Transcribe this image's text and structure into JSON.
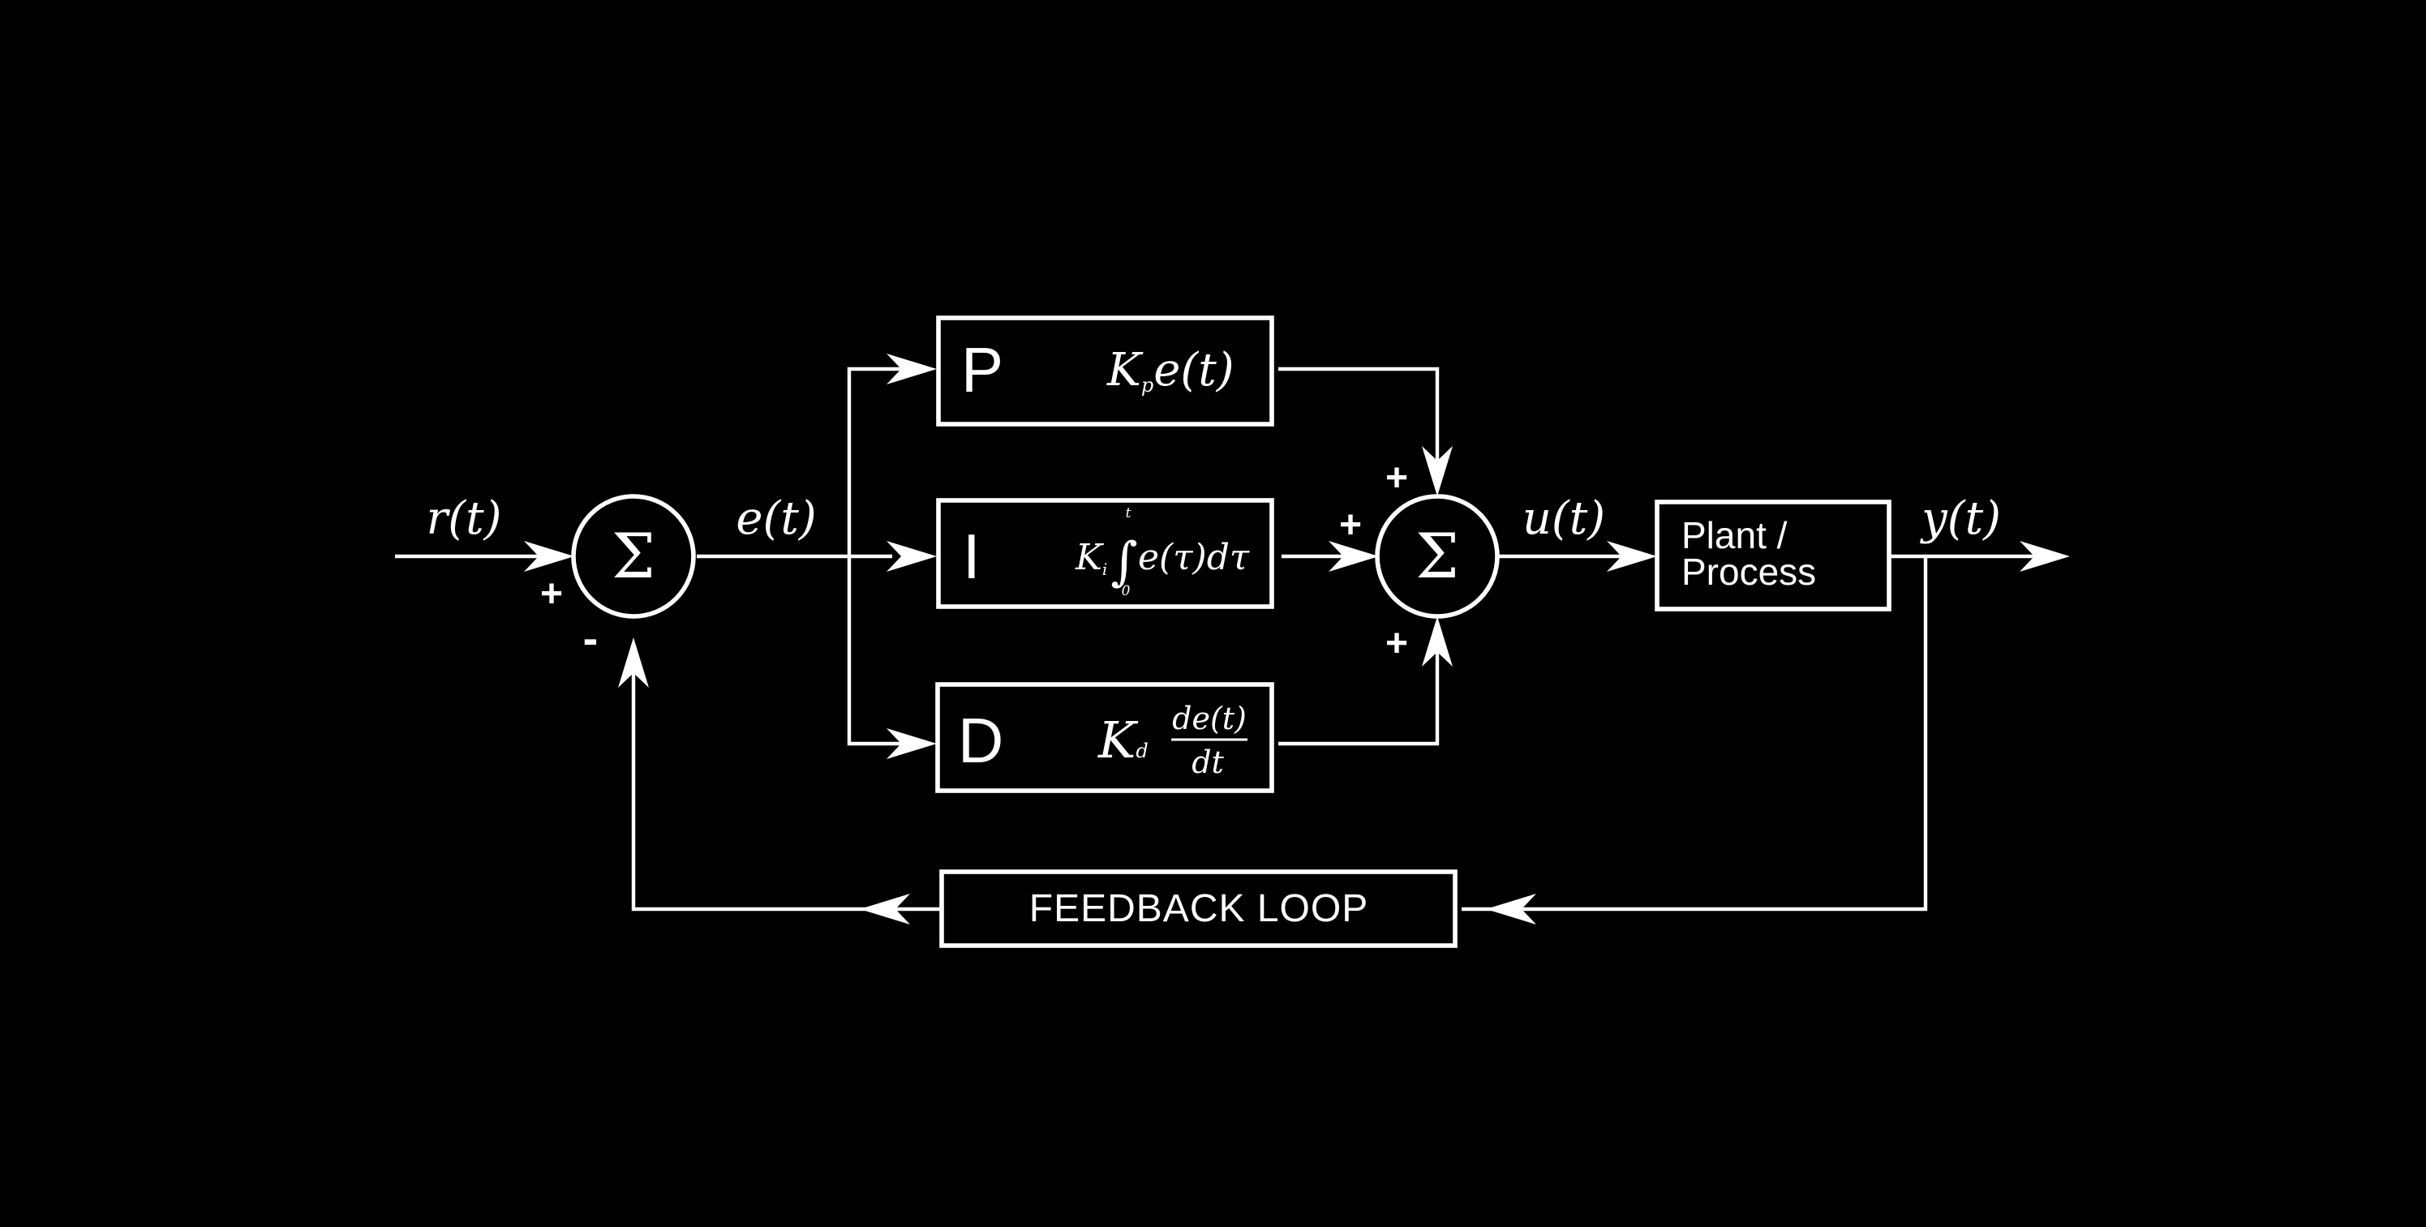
{
  "signals": {
    "reference": "r(t)",
    "error": "e(t)",
    "control": "u(t)",
    "output": "y(t)"
  },
  "summing_junction": {
    "symbol": "Σ"
  },
  "signs": {
    "sum1_plus": "+",
    "sum1_minus": "-",
    "sum2_top_plus": "+",
    "sum2_left_plus": "+",
    "sum2_bottom_plus": "+"
  },
  "blocks": {
    "p": {
      "letter": "P",
      "gain": "K",
      "gain_sub": "p",
      "expr": "e(t)"
    },
    "i": {
      "letter": "I",
      "gain": "K",
      "gain_sub": "i",
      "integral": "∫",
      "upper_limit": "t",
      "lower_limit": "0",
      "expr": "e(τ)dτ"
    },
    "d": {
      "letter": "D",
      "gain": "K",
      "gain_sub": "d",
      "numerator": "de(t)",
      "denominator": "dt"
    },
    "plant": {
      "line1": "Plant /",
      "line2": "Process"
    },
    "feedback": {
      "label": "FEEDBACK LOOP"
    }
  }
}
